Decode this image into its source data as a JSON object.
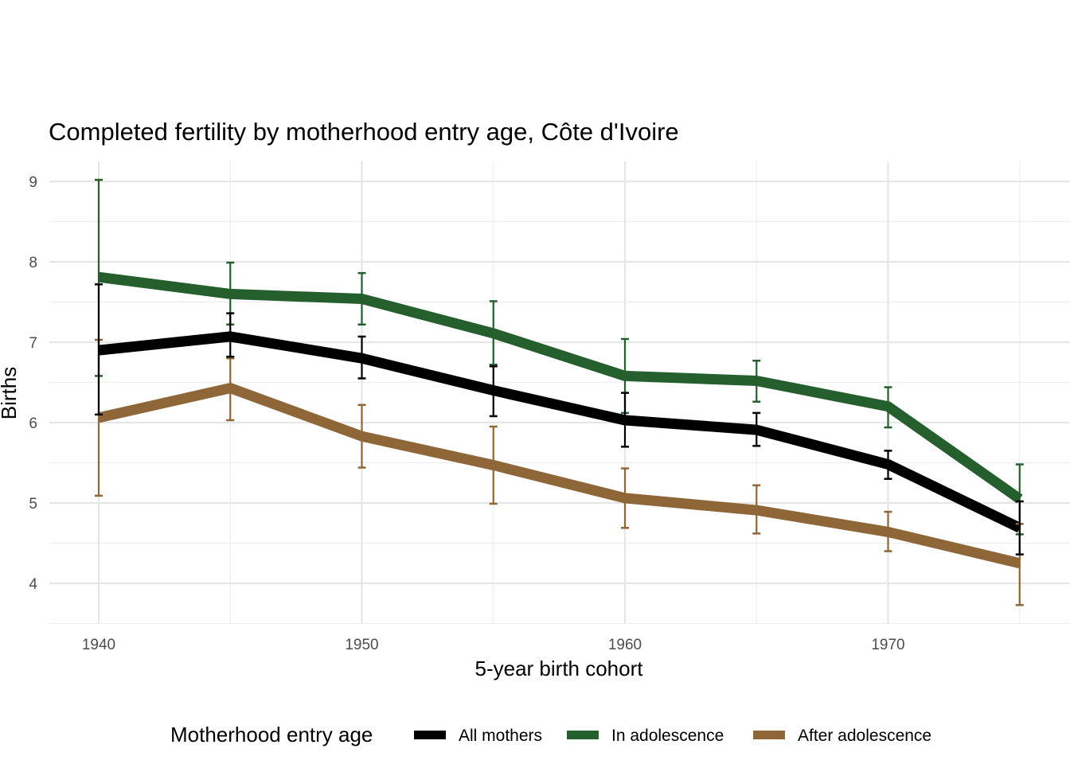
{
  "chart_data": {
    "type": "line",
    "title": "Completed fertility by motherhood entry age,  Côte d'Ivoire",
    "xlabel": "5-year birth cohort",
    "ylabel": "Births",
    "x": [
      1940,
      1945,
      1950,
      1955,
      1960,
      1965,
      1970,
      1975
    ],
    "xlim": [
      1939,
      1976.8
    ],
    "ylim": [
      3.5,
      9.25
    ],
    "x_ticks": [
      1940,
      1950,
      1960,
      1970
    ],
    "x_tick_labels": [
      "1940",
      "1950",
      "1960",
      "1970"
    ],
    "x_minor": [
      1945,
      1955,
      1965,
      1975
    ],
    "y_ticks": [
      4,
      5,
      6,
      7,
      8,
      9
    ],
    "y_tick_labels": [
      "4",
      "5",
      "6",
      "7",
      "8",
      "9"
    ],
    "y_minor": [
      3.5,
      4.5,
      5.5,
      6.5,
      7.5,
      8.5
    ],
    "grid": true,
    "legend": {
      "title": "Motherhood entry age",
      "position": "bottom",
      "entries": [
        "All mothers",
        "In adolescence",
        "After adolescence"
      ]
    },
    "series": [
      {
        "name": "All mothers",
        "color": "#000000",
        "values": [
          6.9,
          7.07,
          6.8,
          6.4,
          6.03,
          5.91,
          5.48,
          4.69
        ],
        "lower": [
          6.1,
          6.82,
          6.55,
          6.08,
          5.7,
          5.71,
          5.3,
          4.36
        ],
        "upper": [
          7.72,
          7.36,
          7.07,
          6.7,
          6.37,
          6.12,
          5.65,
          5.02
        ]
      },
      {
        "name": "In adolescence",
        "color": "#245f2d",
        "values": [
          7.81,
          7.6,
          7.54,
          7.11,
          6.58,
          6.52,
          6.2,
          5.05
        ],
        "lower": [
          6.58,
          7.22,
          7.22,
          6.72,
          6.12,
          6.26,
          5.94,
          4.61
        ],
        "upper": [
          9.02,
          7.99,
          7.86,
          7.51,
          7.04,
          6.77,
          6.44,
          5.48
        ]
      },
      {
        "name": "After adolescence",
        "color": "#8f6638",
        "values": [
          6.06,
          6.43,
          5.83,
          5.47,
          5.06,
          4.91,
          4.64,
          4.25
        ],
        "lower": [
          5.09,
          6.03,
          5.44,
          4.99,
          4.69,
          4.62,
          4.4,
          3.73
        ],
        "upper": [
          7.03,
          6.8,
          6.22,
          5.95,
          5.43,
          5.22,
          4.89,
          4.74
        ]
      }
    ]
  }
}
